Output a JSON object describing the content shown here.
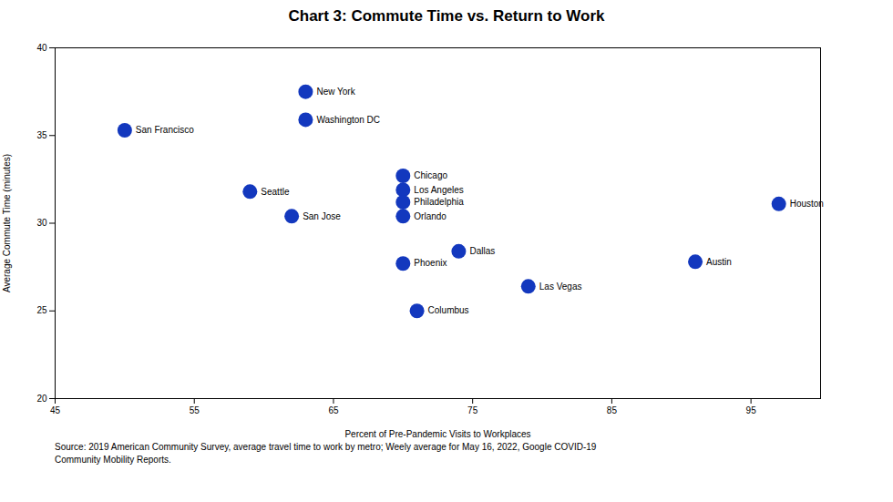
{
  "chart_data": {
    "type": "scatter",
    "title": "Chart 3: Commute Time vs. Return to Work",
    "xlabel": "Percent of Pre-Pandemic Visits to Workplaces",
    "ylabel": "Average Commute Time (minutes)",
    "footnote": "Source: 2019 American Community Survey, average travel time to work by metro; Weely average for May 16, 2022, Google COVID-19\nCommunity Mobility Reports.",
    "labels": [
      "New York",
      "Washington DC",
      "San Francisco",
      "Chicago",
      "Los Angeles",
      "Seattle",
      "Philadelphia",
      "Orlando",
      "San Jose",
      "Houston",
      "Dallas",
      "Phoenix",
      "Austin",
      "Las Vegas",
      "Columbus"
    ],
    "x": [
      63,
      63,
      50,
      70,
      70,
      59,
      70,
      70,
      62,
      97,
      74,
      70,
      91,
      79,
      71
    ],
    "values": [
      37.5,
      35.9,
      35.3,
      32.7,
      31.9,
      31.8,
      31.2,
      30.4,
      30.4,
      31.1,
      28.4,
      27.7,
      27.8,
      26.4,
      25.0
    ],
    "color": "#1338be",
    "xlim": [
      45,
      100
    ],
    "ylim": [
      20,
      40
    ],
    "xticks": [
      45,
      55,
      65,
      75,
      85,
      95
    ],
    "yticks": [
      20,
      25,
      30,
      35,
      40
    ],
    "grid": false
  }
}
